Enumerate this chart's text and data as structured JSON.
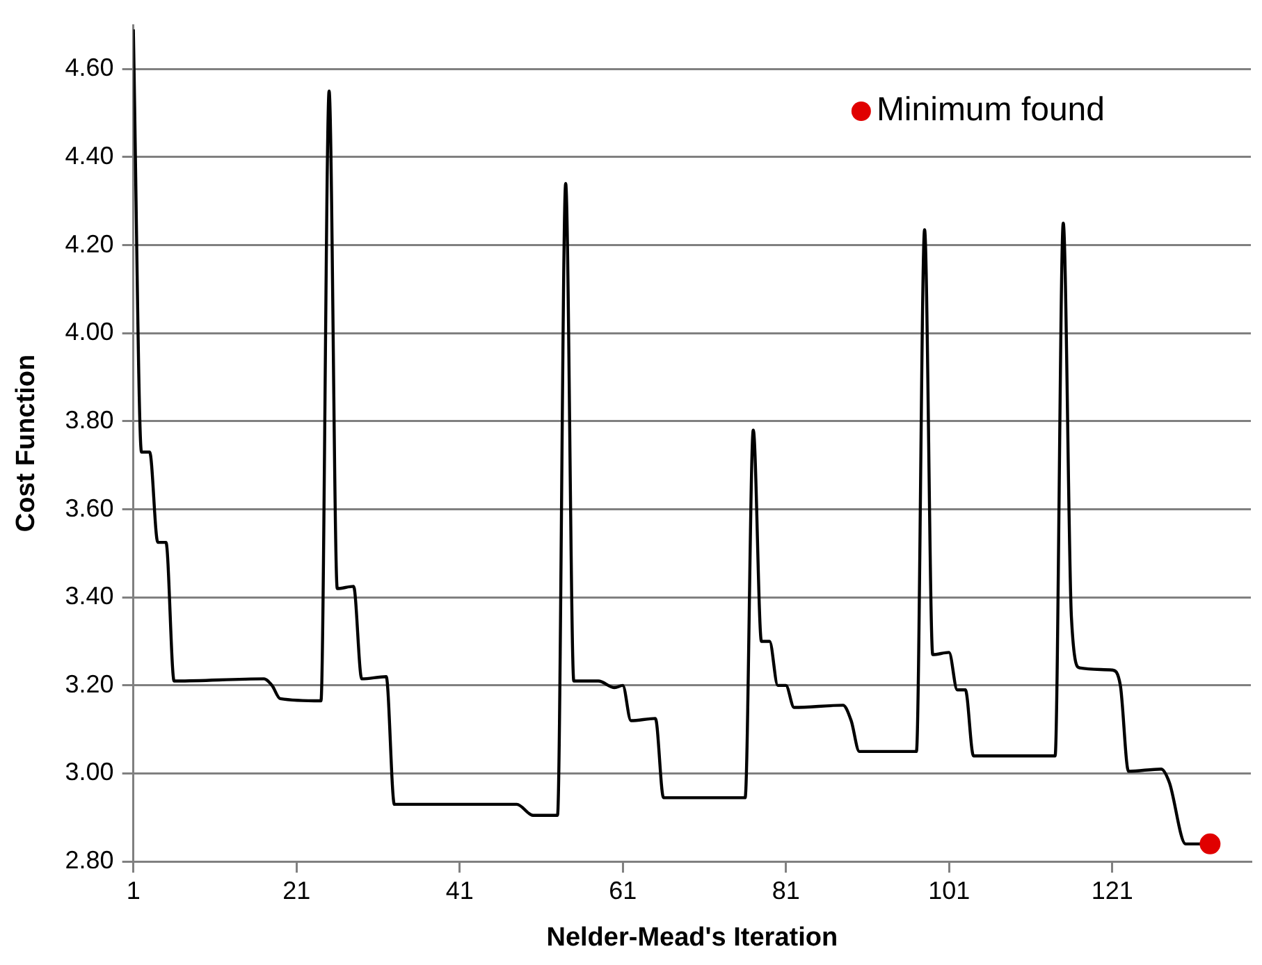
{
  "chart_data": {
    "type": "line",
    "xlabel": "Nelder-Mead's Iteration",
    "ylabel": "Cost Function",
    "xlim": [
      1,
      138
    ],
    "xticks": [
      1,
      21,
      41,
      61,
      81,
      101,
      121
    ],
    "ylim": [
      2.8,
      4.7
    ],
    "yticks": [
      {
        "value": 2.8,
        "label": "2.80"
      },
      {
        "value": 3.0,
        "label": "3.00"
      },
      {
        "value": 3.2,
        "label": "3.20"
      },
      {
        "value": 3.4,
        "label": "3.40"
      },
      {
        "value": 3.6,
        "label": "3.60"
      },
      {
        "value": 3.8,
        "label": "3.80"
      },
      {
        "value": 4.0,
        "label": "4.00"
      },
      {
        "value": 4.2,
        "label": "4.20"
      },
      {
        "value": 4.4,
        "label": "4.40"
      },
      {
        "value": 4.6,
        "label": "4.60"
      }
    ],
    "grid": "y",
    "legend": "top right",
    "series": [
      {
        "type": "line",
        "color": "#000000",
        "marker": "none",
        "x": [
          1,
          2,
          3,
          4,
          5,
          6,
          17,
          18,
          19,
          24,
          25,
          26,
          28,
          29,
          32,
          33,
          48,
          50,
          53,
          54,
          55,
          58,
          60,
          61,
          62,
          65,
          66,
          76,
          77,
          78,
          79,
          80,
          81,
          82,
          88,
          89,
          90,
          97,
          98,
          99,
          101,
          102,
          103,
          104,
          114,
          115,
          116,
          117,
          121,
          122,
          123,
          127,
          128,
          130,
          133
        ],
        "values": [
          4.69,
          3.73,
          3.73,
          3.525,
          3.525,
          3.21,
          3.215,
          3.2,
          3.17,
          3.165,
          4.55,
          3.42,
          3.425,
          3.215,
          3.22,
          2.93,
          2.93,
          2.905,
          2.905,
          4.34,
          3.21,
          3.21,
          3.195,
          3.2,
          3.12,
          3.125,
          2.945,
          2.945,
          3.78,
          3.3,
          3.3,
          3.2,
          3.2,
          3.15,
          3.155,
          3.12,
          3.05,
          3.05,
          4.235,
          3.27,
          3.275,
          3.19,
          3.19,
          3.04,
          3.04,
          4.25,
          3.355,
          3.24,
          3.235,
          3.2,
          3.005,
          3.01,
          2.98,
          2.84,
          2.84
        ]
      },
      {
        "type": "scatter",
        "name": "Minimum found",
        "color": "#e00000",
        "marker": "circle",
        "x": [
          133
        ],
        "values": [
          2.84
        ]
      }
    ]
  }
}
